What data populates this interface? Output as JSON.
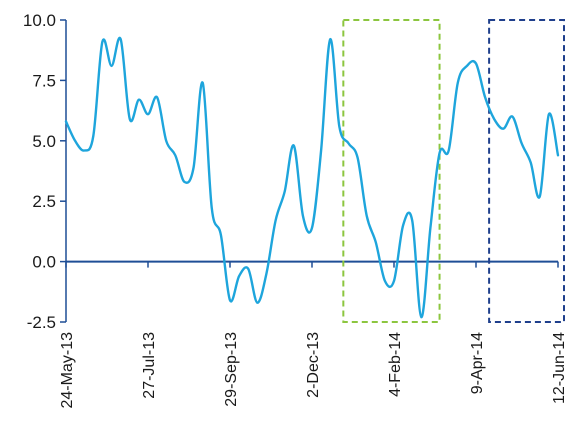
{
  "chart_data": {
    "type": "line",
    "title": "",
    "xlabel": "",
    "ylabel": "",
    "ylim": [
      -2.5,
      10.0
    ],
    "y_ticks": [
      "10.0",
      "7.5",
      "5.0",
      "2.5",
      "0.0",
      "-2.5"
    ],
    "y_tick_values": [
      10.0,
      7.5,
      5.0,
      2.5,
      0.0,
      -2.5
    ],
    "x_tick_labels": [
      "24-May-13",
      "27-Jul-13",
      "29-Sep-13",
      "2-Dec-13",
      "4-Feb-14",
      "9-Apr-14",
      "12-Jun-14"
    ],
    "grid": false,
    "legend": "none",
    "colors": {
      "line": "#1ea5dc",
      "axis": "#1f4e96",
      "highlight_green": "#8cc63f",
      "highlight_navy": "#1f3f8c"
    },
    "series": [
      {
        "values": [
          5.8,
          5.0,
          4.6,
          5.2,
          9.1,
          8.1,
          9.2,
          5.9,
          6.7,
          6.1,
          6.8,
          5.0,
          4.4,
          3.3,
          3.9,
          7.4,
          2.2,
          1.1,
          -1.6,
          -0.6,
          -0.3,
          -1.7,
          -0.5,
          1.7,
          2.9,
          4.8,
          1.9,
          1.4,
          4.6,
          9.2,
          5.6,
          4.9,
          4.3,
          1.9,
          0.8,
          -0.8,
          -0.8,
          1.5,
          1.7,
          -2.3,
          1.4,
          4.5,
          4.6,
          7.4,
          8.1,
          8.2,
          6.8,
          5.9,
          5.5,
          6.0,
          4.9,
          4.1,
          2.7,
          6.1,
          4.4
        ]
      }
    ],
    "highlight_boxes": [
      {
        "style": "dashed",
        "color": "green",
        "x_from_index": 30,
        "x_to_index": 41,
        "y_range": [
          -2.5,
          10.0
        ]
      },
      {
        "style": "dashed",
        "color": "navy",
        "x_from_index": 46,
        "x_to_index": 55,
        "y_range": [
          -2.5,
          10.0
        ]
      }
    ]
  }
}
